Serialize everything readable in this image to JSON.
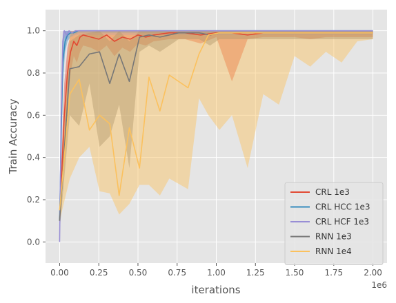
{
  "chart_data": {
    "type": "line",
    "xlabel": "iterations",
    "ylabel": "Train Accuracy",
    "x_offset_label": "1e6",
    "xlim": [
      -90000,
      2090000
    ],
    "ylim": [
      -0.1,
      1.1
    ],
    "x_ticks": [
      0,
      250000,
      500000,
      750000,
      1000000,
      1250000,
      1500000,
      1750000,
      2000000
    ],
    "x_tick_labels": [
      "0.00",
      "0.25",
      "0.50",
      "0.75",
      "1.00",
      "1.25",
      "1.50",
      "1.75",
      "2.00"
    ],
    "y_ticks": [
      0.0,
      0.2,
      0.4,
      0.6,
      0.8,
      1.0
    ],
    "y_tick_labels": [
      "0.0",
      "0.2",
      "0.4",
      "0.6",
      "0.8",
      "1.0"
    ],
    "grid": true,
    "legend_position": "lower right",
    "series": [
      {
        "name": "CRL 1e3",
        "color": "#E24A33",
        "x": [
          0,
          15000,
          30000,
          50000,
          70000,
          90000,
          110000,
          130000,
          150000,
          200000,
          250000,
          300000,
          350000,
          400000,
          450000,
          500000,
          550000,
          600000,
          700000,
          800000,
          900000,
          1000000,
          1100000,
          1200000,
          1300000,
          1400000,
          1500000,
          1600000,
          1700000,
          1800000,
          1900000,
          2000000
        ],
        "y": [
          0.1,
          0.35,
          0.6,
          0.8,
          0.9,
          0.95,
          0.93,
          0.97,
          0.98,
          0.97,
          0.96,
          0.98,
          0.95,
          0.97,
          0.96,
          0.98,
          0.97,
          0.98,
          0.99,
          0.99,
          0.98,
          0.99,
          0.99,
          0.98,
          0.99,
          0.99,
          0.99,
          0.99,
          0.99,
          0.99,
          0.99,
          0.99
        ],
        "band_lower": [
          0.05,
          0.25,
          0.45,
          0.65,
          0.8,
          0.88,
          0.85,
          0.9,
          0.93,
          0.92,
          0.9,
          0.93,
          0.88,
          0.92,
          0.9,
          0.94,
          0.93,
          0.95,
          0.96,
          0.96,
          0.94,
          0.97,
          0.76,
          0.96,
          0.97,
          0.97,
          0.97,
          0.96,
          0.97,
          0.97,
          0.97,
          0.97
        ],
        "band_upper": [
          0.15,
          0.45,
          0.75,
          0.92,
          0.98,
          1.0,
          1.0,
          1.0,
          1.0,
          1.0,
          1.0,
          1.0,
          1.0,
          1.0,
          1.0,
          1.0,
          1.0,
          1.0,
          1.0,
          1.0,
          1.0,
          1.0,
          1.0,
          1.0,
          1.0,
          1.0,
          1.0,
          1.0,
          1.0,
          1.0,
          1.0,
          1.0
        ]
      },
      {
        "name": "CRL HCC 1e3",
        "color": "#348ABD",
        "x": [
          0,
          10000,
          20000,
          35000,
          50000,
          70000,
          90000,
          120000,
          150000,
          200000,
          300000,
          400000,
          500000,
          700000,
          900000,
          1100000,
          1300000,
          1500000,
          1700000,
          2000000
        ],
        "y": [
          0.1,
          0.5,
          0.85,
          0.95,
          0.98,
          0.99,
          0.99,
          1.0,
          1.0,
          1.0,
          1.0,
          1.0,
          1.0,
          1.0,
          1.0,
          1.0,
          1.0,
          1.0,
          1.0,
          1.0
        ],
        "band_lower": [
          0.05,
          0.4,
          0.75,
          0.9,
          0.95,
          0.97,
          0.98,
          0.99,
          0.99,
          0.99,
          0.99,
          0.99,
          0.99,
          0.99,
          0.99,
          0.99,
          0.99,
          0.99,
          0.99,
          0.99
        ],
        "band_upper": [
          0.15,
          0.6,
          0.95,
          1.0,
          1.0,
          1.0,
          1.0,
          1.0,
          1.0,
          1.0,
          1.0,
          1.0,
          1.0,
          1.0,
          1.0,
          1.0,
          1.0,
          1.0,
          1.0,
          1.0
        ]
      },
      {
        "name": "CRL HCF 1e3",
        "color": "#988ED5",
        "x": [
          0,
          10000,
          20000,
          30000,
          45000,
          60000,
          80000,
          100000,
          130000,
          160000,
          200000,
          300000,
          400000,
          500000,
          700000,
          900000,
          1100000,
          1300000,
          1500000,
          1700000,
          2000000
        ],
        "y": [
          0.0,
          0.6,
          0.95,
          1.0,
          0.98,
          1.0,
          0.99,
          1.0,
          1.0,
          1.0,
          1.0,
          1.0,
          1.0,
          1.0,
          1.0,
          1.0,
          1.0,
          1.0,
          1.0,
          1.0,
          1.0
        ],
        "band_lower": [
          0.0,
          0.5,
          0.9,
          0.97,
          0.95,
          0.98,
          0.97,
          0.98,
          0.98,
          0.98,
          0.98,
          0.98,
          0.98,
          0.98,
          0.98,
          0.98,
          0.98,
          0.98,
          0.98,
          0.98,
          0.98
        ],
        "band_upper": [
          0.0,
          0.7,
          1.0,
          1.0,
          1.0,
          1.0,
          1.0,
          1.0,
          1.0,
          1.0,
          1.0,
          1.0,
          1.0,
          1.0,
          1.0,
          1.0,
          1.0,
          1.0,
          1.0,
          1.0,
          1.0
        ]
      },
      {
        "name": "RNN 1e3",
        "color": "#777777",
        "x": [
          0,
          65000,
          125000,
          190000,
          255000,
          320000,
          380000,
          445000,
          510000,
          570000,
          640000,
          700000,
          760000,
          830000,
          890000,
          960000,
          1020000,
          1100000,
          1200000,
          1300000,
          1400000,
          1500000,
          1600000,
          1700000,
          1800000,
          1900000,
          2000000
        ],
        "y": [
          0.1,
          0.82,
          0.83,
          0.89,
          0.9,
          0.75,
          0.89,
          0.76,
          0.97,
          0.98,
          0.97,
          0.98,
          0.99,
          0.99,
          0.99,
          0.98,
          0.99,
          0.99,
          0.99,
          0.99,
          0.99,
          0.99,
          0.99,
          0.99,
          0.99,
          0.99,
          0.99
        ],
        "band_lower": [
          0.05,
          0.6,
          0.55,
          0.75,
          0.45,
          0.5,
          0.65,
          0.35,
          0.9,
          0.93,
          0.9,
          0.93,
          0.96,
          0.96,
          0.96,
          0.93,
          0.96,
          0.96,
          0.96,
          0.96,
          0.96,
          0.96,
          0.96,
          0.96,
          0.96,
          0.96,
          0.96
        ],
        "band_upper": [
          0.15,
          0.95,
          0.98,
          0.99,
          1.0,
          0.95,
          1.0,
          0.95,
          1.0,
          1.0,
          1.0,
          1.0,
          1.0,
          1.0,
          1.0,
          1.0,
          1.0,
          1.0,
          1.0,
          1.0,
          1.0,
          1.0,
          1.0,
          1.0,
          1.0,
          1.0,
          1.0
        ]
      },
      {
        "name": "RNN 1e4",
        "color": "#FBC15E",
        "x": [
          0,
          65000,
          125000,
          190000,
          255000,
          320000,
          380000,
          445000,
          510000,
          570000,
          640000,
          700000,
          820000,
          890000,
          950000,
          1020000,
          1100000,
          1200000,
          1300000,
          1400000,
          1500000,
          1600000,
          1700000,
          1800000,
          1900000,
          2000000
        ],
        "y": [
          0.15,
          0.7,
          0.77,
          0.53,
          0.6,
          0.56,
          0.22,
          0.54,
          0.35,
          0.78,
          0.62,
          0.79,
          0.73,
          0.89,
          0.98,
          0.99,
          0.99,
          0.99,
          0.99,
          0.99,
          0.99,
          0.99,
          0.99,
          0.99,
          0.99,
          0.99
        ],
        "band_lower": [
          0.1,
          0.3,
          0.4,
          0.45,
          0.24,
          0.23,
          0.13,
          0.18,
          0.27,
          0.27,
          0.22,
          0.3,
          0.25,
          0.68,
          0.6,
          0.53,
          0.6,
          0.35,
          0.7,
          0.65,
          0.88,
          0.83,
          0.9,
          0.85,
          0.95,
          0.96
        ],
        "band_upper": [
          0.2,
          1.0,
          1.0,
          1.0,
          1.0,
          1.0,
          1.0,
          1.0,
          1.0,
          1.0,
          1.0,
          1.0,
          1.0,
          1.0,
          1.0,
          1.0,
          1.0,
          1.0,
          1.0,
          1.0,
          1.0,
          1.0,
          1.0,
          1.0,
          1.0,
          1.0
        ]
      }
    ]
  }
}
